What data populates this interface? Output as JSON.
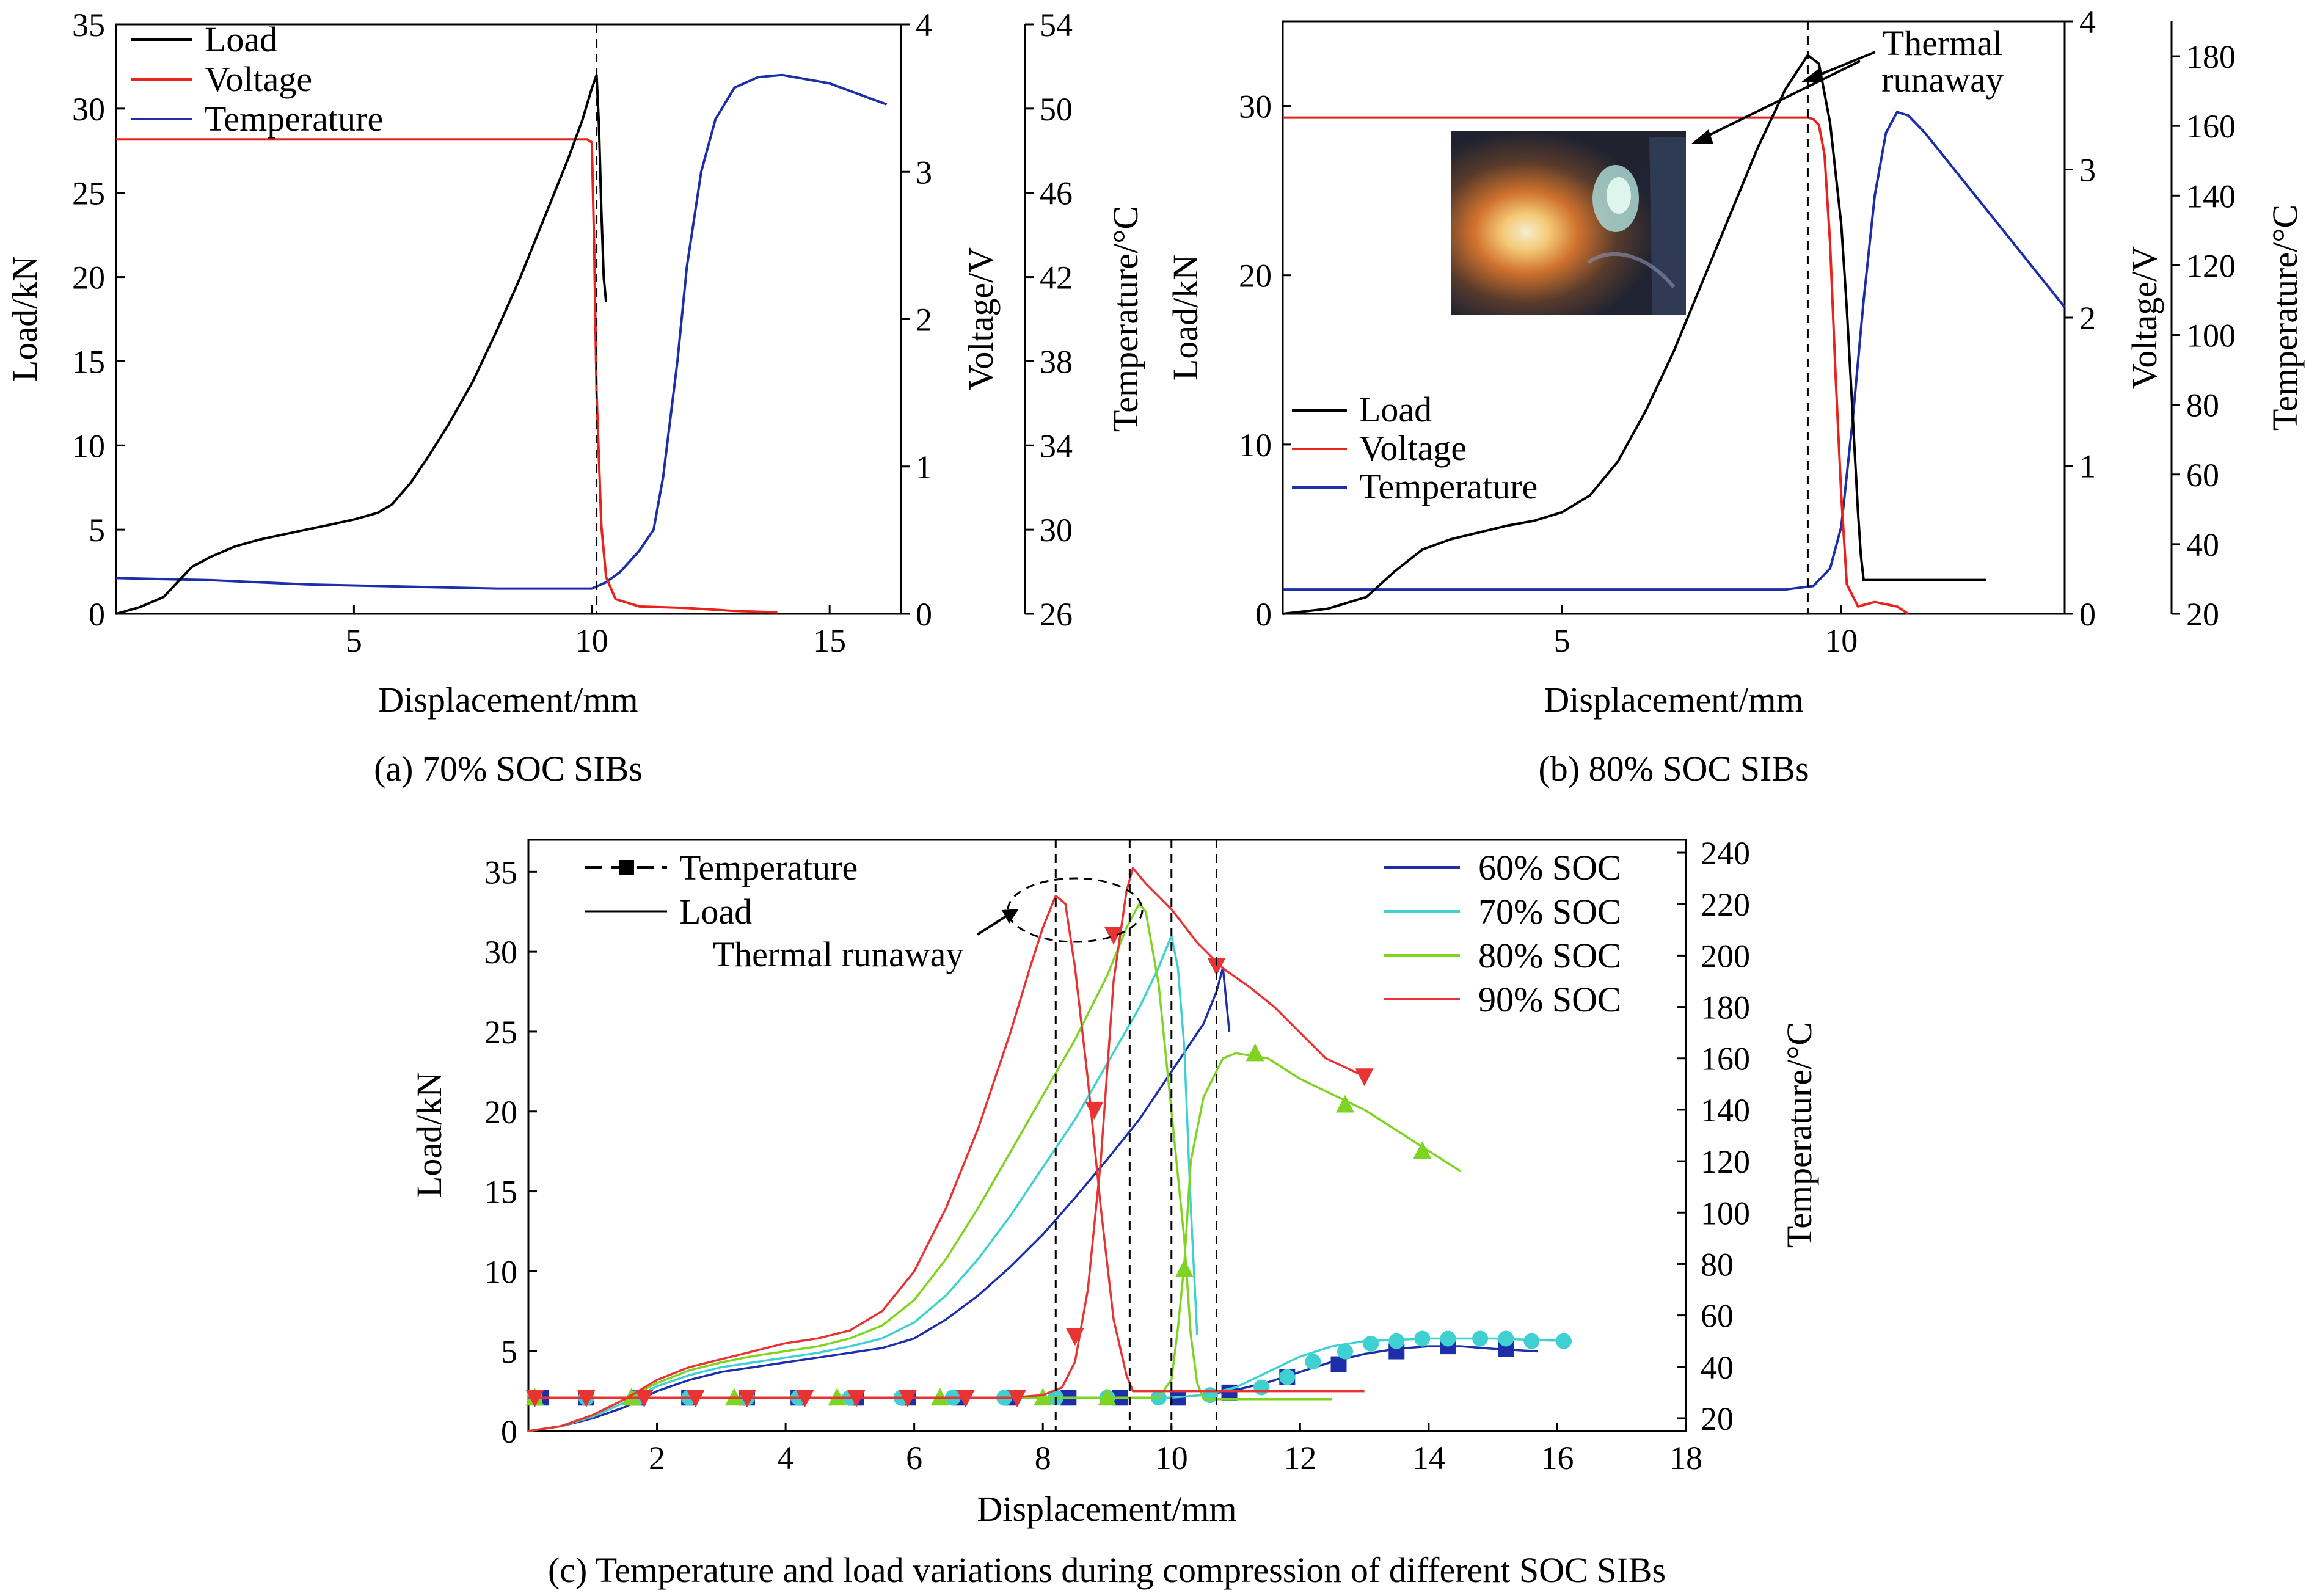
{
  "chart_data": [
    {
      "type": "line",
      "caption": "(a) 70% SOC SIBs",
      "xlabel": "Displacement/mm",
      "ylabel": "Load/kN",
      "y2label": "Voltage/V",
      "y3label": "Temperature/°C",
      "xlim": [
        0,
        16.5
      ],
      "ylim": [
        0,
        35
      ],
      "y2lim": [
        0,
        4
      ],
      "y3lim": [
        26,
        54
      ],
      "xticks": [
        "5",
        "10",
        "15"
      ],
      "yticks": [
        "0",
        "5",
        "10",
        "15",
        "20",
        "25",
        "30",
        "35"
      ],
      "y2ticks": [
        "0",
        "1",
        "2",
        "3",
        "4"
      ],
      "y3ticks": [
        "26",
        "30",
        "34",
        "38",
        "42",
        "46",
        "50",
        "54"
      ],
      "legend": [
        "Load",
        "Voltage",
        "Temperature"
      ],
      "legend_position": "top-left",
      "marker_line_x": 10.1,
      "series": [
        {
          "name": "Load",
          "axis": "load",
          "color": "#000000",
          "x": [
            0,
            0.5,
            1.0,
            1.4,
            1.6,
            2.0,
            2.5,
            3.0,
            3.5,
            4.0,
            4.5,
            5.0,
            5.5,
            5.8,
            6.2,
            6.6,
            7.0,
            7.5,
            8.0,
            8.5,
            9.0,
            9.5,
            9.8,
            10.0,
            10.1,
            10.15,
            10.2,
            10.25,
            10.3
          ],
          "y": [
            0,
            0.4,
            1.0,
            2.2,
            2.8,
            3.4,
            4.0,
            4.4,
            4.7,
            5.0,
            5.3,
            5.6,
            6.0,
            6.5,
            7.8,
            9.5,
            11.3,
            13.8,
            16.8,
            20.0,
            23.5,
            27.0,
            29.3,
            31.2,
            32.0,
            29.0,
            24.0,
            20.0,
            18.5
          ]
        },
        {
          "name": "Voltage",
          "axis": "voltage",
          "color": "#e8231b",
          "x": [
            0,
            9.9,
            10.0,
            10.05,
            10.1,
            10.2,
            10.3,
            10.5,
            11.0,
            12.0,
            13.0,
            13.9
          ],
          "y": [
            3.22,
            3.22,
            3.2,
            2.5,
            1.5,
            0.6,
            0.25,
            0.1,
            0.05,
            0.04,
            0.02,
            0.01
          ]
        },
        {
          "name": "Temperature",
          "axis": "temperature",
          "color": "#1c2fa8",
          "x": [
            0,
            2,
            4,
            6,
            8,
            10,
            10.3,
            10.6,
            11.0,
            11.3,
            11.5,
            11.8,
            12.0,
            12.3,
            12.6,
            13.0,
            13.5,
            14.0,
            15.0,
            16.2
          ],
          "y": [
            27.7,
            27.6,
            27.4,
            27.3,
            27.2,
            27.2,
            27.5,
            28.0,
            29.0,
            30.0,
            32.5,
            38.0,
            42.5,
            47.0,
            49.5,
            51.0,
            51.5,
            51.6,
            51.2,
            50.2
          ]
        }
      ]
    },
    {
      "type": "line",
      "caption": "(b) 80% SOC SIBs",
      "xlabel": "Displacement/mm",
      "ylabel": "Load/kN",
      "y2label": "Voltage/V",
      "y3label": "Temperature/°C",
      "xlim": [
        0,
        14
      ],
      "ylim": [
        0,
        35
      ],
      "y2lim": [
        0,
        4
      ],
      "y3lim": [
        20,
        190
      ],
      "xticks": [
        "5",
        "10"
      ],
      "yticks": [
        "0",
        "10",
        "20",
        "30"
      ],
      "y2ticks": [
        "0",
        "1",
        "2",
        "3",
        "4"
      ],
      "y3ticks": [
        "20",
        "40",
        "60",
        "80",
        "100",
        "120",
        "140",
        "160",
        "180"
      ],
      "legend": [
        "Load",
        "Voltage",
        "Temperature"
      ],
      "legend_position": "middle-left",
      "annotation": "Thermal runaway",
      "marker_line_x": 9.4,
      "series": [
        {
          "name": "Load",
          "axis": "load",
          "color": "#000000",
          "x": [
            0,
            0.8,
            1.5,
            2.0,
            2.5,
            3.0,
            3.5,
            4.0,
            4.5,
            5.0,
            5.5,
            6.0,
            6.5,
            7.0,
            7.5,
            8.0,
            8.5,
            9.0,
            9.4,
            9.6,
            9.8,
            10.0,
            10.1,
            10.2,
            10.3,
            10.35,
            10.4,
            11.0,
            12.0,
            12.6
          ],
          "y": [
            0,
            0.3,
            1.0,
            2.5,
            3.8,
            4.4,
            4.8,
            5.2,
            5.5,
            6.0,
            7.0,
            9.0,
            12.0,
            15.5,
            19.5,
            23.5,
            27.5,
            31.0,
            33.0,
            32.5,
            29.0,
            23.0,
            18.0,
            12.0,
            6.0,
            3.5,
            2.0,
            2.0,
            2.0,
            2.0
          ]
        },
        {
          "name": "Voltage",
          "axis": "voltage",
          "color": "#e8231b",
          "x": [
            0,
            9.4,
            9.5,
            9.6,
            9.7,
            9.8,
            9.9,
            10.0,
            10.1,
            10.3,
            10.6,
            11.0,
            11.2
          ],
          "y": [
            3.35,
            3.35,
            3.34,
            3.3,
            3.1,
            2.5,
            1.6,
            0.8,
            0.2,
            0.05,
            0.08,
            0.05,
            0.0
          ]
        },
        {
          "name": "Temperature",
          "axis": "temperature",
          "color": "#1c2fa8",
          "x": [
            0,
            3,
            6,
            9.0,
            9.5,
            9.8,
            10.0,
            10.2,
            10.4,
            10.6,
            10.8,
            11.0,
            11.2,
            11.5,
            12.0,
            12.5,
            13.0,
            14.0
          ],
          "y": [
            27,
            27,
            27,
            27,
            28,
            33,
            45,
            75,
            110,
            140,
            158,
            164,
            163,
            158,
            148,
            138,
            128,
            108
          ]
        }
      ]
    },
    {
      "type": "line",
      "caption": "(c) Temperature and load variations during compression of different SOC SIBs",
      "xlabel": "Displacement/mm",
      "ylabel": "Load/kN",
      "y2label": "Temperature/°C",
      "xlim": [
        0,
        18
      ],
      "ylim": [
        0,
        37
      ],
      "y2lim": [
        15,
        245
      ],
      "xticks": [
        "2",
        "4",
        "6",
        "8",
        "10",
        "12",
        "14",
        "16",
        "18"
      ],
      "yticks": [
        "0",
        "5",
        "10",
        "15",
        "20",
        "25",
        "30",
        "35"
      ],
      "y2ticks": [
        "20",
        "40",
        "60",
        "80",
        "100",
        "120",
        "140",
        "160",
        "180",
        "200",
        "220",
        "240"
      ],
      "legend_styles": [
        "Temperature",
        "Load"
      ],
      "legend_series": [
        "60% SOC",
        "70% SOC",
        "80% SOC",
        "90% SOC"
      ],
      "annotation": "Thermal runaway",
      "marker_lines_x": [
        8.2,
        9.35,
        10.0,
        10.7
      ],
      "series": [
        {
          "name": "60% SOC",
          "color": "#1c2fa8",
          "marker": "square",
          "load_x": [
            0,
            0.5,
            1.0,
            1.5,
            2.0,
            2.5,
            3.0,
            3.5,
            4.0,
            4.5,
            5.0,
            5.5,
            6.0,
            6.5,
            7.0,
            7.5,
            8.0,
            8.5,
            9.0,
            9.5,
            10.0,
            10.5,
            10.7,
            10.8,
            10.9
          ],
          "load_y": [
            0,
            0.3,
            0.8,
            1.5,
            2.5,
            3.2,
            3.7,
            4.0,
            4.3,
            4.6,
            4.9,
            5.2,
            5.8,
            7.0,
            8.5,
            10.3,
            12.3,
            14.6,
            17.0,
            19.5,
            22.5,
            25.5,
            27.5,
            29.0,
            25.0
          ],
          "temp_x": [
            0,
            2,
            4,
            6,
            8,
            9,
            10,
            10.5,
            11.0,
            11.5,
            12.0,
            12.5,
            13.0,
            13.5,
            14.0,
            14.5,
            15.0,
            15.7
          ],
          "temp_y": [
            28,
            28,
            28,
            28,
            28,
            28,
            28,
            29,
            31,
            34,
            38,
            42,
            45,
            47,
            48,
            48,
            47,
            46
          ],
          "temp_marker_x": [
            0.2,
            0.9,
            1.7,
            2.5,
            3.4,
            4.2,
            5.1,
            5.9,
            6.7,
            7.5,
            8.4,
            9.2,
            10.1,
            10.9,
            11.8,
            12.6,
            13.5,
            14.3,
            15.2
          ],
          "temp_marker_y": [
            28,
            28,
            28,
            28,
            28,
            28,
            28,
            28,
            28,
            28,
            28,
            28,
            28,
            30,
            36,
            41,
            46,
            48,
            47
          ]
        },
        {
          "name": "70% SOC",
          "color": "#3fd1d1",
          "marker": "circle",
          "load_x": [
            0,
            0.5,
            1.0,
            1.5,
            2.0,
            2.5,
            3.0,
            3.5,
            4.0,
            4.5,
            5.0,
            5.5,
            6.0,
            6.5,
            7.0,
            7.5,
            8.0,
            8.5,
            9.0,
            9.5,
            9.8,
            10.0,
            10.1,
            10.2,
            10.3,
            10.4
          ],
          "load_y": [
            0,
            0.3,
            0.9,
            1.8,
            2.8,
            3.5,
            4.0,
            4.3,
            4.6,
            4.9,
            5.3,
            5.8,
            6.8,
            8.5,
            10.8,
            13.5,
            16.5,
            19.5,
            23.0,
            26.5,
            29.0,
            31.0,
            29.0,
            24.0,
            14.0,
            6.0
          ],
          "temp_x": [
            0,
            2,
            4,
            6,
            8,
            9,
            10,
            10.5,
            11.0,
            11.5,
            12.0,
            12.5,
            13.0,
            14.0,
            15.0,
            16.2
          ],
          "temp_y": [
            28,
            28,
            28,
            28,
            28,
            28,
            28,
            29,
            32,
            38,
            44,
            48,
            50,
            51,
            51,
            50
          ],
          "temp_marker_x": [
            0.1,
            0.9,
            1.7,
            2.5,
            3.4,
            4.2,
            5.0,
            5.8,
            6.6,
            7.4,
            8.2,
            9.0,
            9.8,
            10.6,
            11.4,
            11.8,
            12.2,
            12.7,
            13.1,
            13.5,
            13.9,
            14.3,
            14.8,
            15.2,
            15.6,
            16.1
          ],
          "temp_marker_y": [
            28,
            28,
            28,
            28,
            28,
            28,
            28,
            28,
            28,
            28,
            28,
            28,
            28,
            29,
            32,
            36,
            42,
            46,
            49,
            50,
            51,
            51,
            51,
            51,
            50,
            50
          ]
        },
        {
          "name": "80% SOC",
          "color": "#7fd321",
          "marker": "triangle-up",
          "load_x": [
            0,
            0.5,
            1.0,
            1.5,
            2.0,
            2.5,
            3.0,
            3.5,
            4.0,
            4.5,
            5.0,
            5.5,
            6.0,
            6.5,
            7.0,
            7.5,
            8.0,
            8.5,
            9.0,
            9.3,
            9.5,
            9.6,
            9.8,
            10.0,
            10.2,
            10.3,
            10.4,
            10.5,
            11.0,
            12.0,
            12.5
          ],
          "load_y": [
            0,
            0.3,
            1.0,
            2.0,
            3.0,
            3.8,
            4.3,
            4.7,
            5.0,
            5.3,
            5.8,
            6.6,
            8.2,
            10.8,
            14.0,
            17.5,
            21.0,
            24.5,
            28.5,
            31.5,
            33.0,
            32.5,
            28.0,
            20.0,
            12.0,
            6.0,
            3.0,
            2.0,
            2.0,
            2.0,
            2.0
          ],
          "temp_x": [
            0,
            2,
            4,
            6,
            8,
            9,
            9.5,
            9.8,
            10.0,
            10.1,
            10.2,
            10.3,
            10.5,
            10.8,
            11.0,
            11.5,
            12.0,
            12.5,
            13.0,
            13.5,
            14.0,
            14.5
          ],
          "temp_y": [
            28,
            28,
            28,
            28,
            28,
            28,
            28,
            28,
            35,
            55,
            80,
            120,
            145,
            160,
            162,
            160,
            152,
            146,
            140,
            132,
            124,
            116
          ],
          "temp_marker_x": [
            0.1,
            1.6,
            3.2,
            4.8,
            6.4,
            8.0,
            9.0,
            10.2,
            11.3,
            12.7,
            13.9
          ],
          "temp_marker_y": [
            28,
            28,
            28,
            28,
            28,
            28,
            28,
            78,
            162,
            142,
            124
          ]
        },
        {
          "name": "90% SOC",
          "color": "#e83333",
          "marker": "triangle-down",
          "load_x": [
            0,
            0.5,
            1.0,
            1.5,
            2.0,
            2.5,
            3.0,
            3.5,
            4.0,
            4.5,
            5.0,
            5.5,
            6.0,
            6.5,
            7.0,
            7.5,
            7.8,
            8.0,
            8.2,
            8.35,
            8.5,
            8.7,
            8.9,
            9.1,
            9.3,
            9.4,
            9.5,
            9.7,
            10.0,
            10.5,
            11.0,
            11.5,
            12.0,
            12.5,
            13.0
          ],
          "load_y": [
            0,
            0.3,
            1.0,
            2.0,
            3.2,
            4.0,
            4.5,
            5.0,
            5.5,
            5.8,
            6.3,
            7.5,
            10.0,
            14.0,
            19.0,
            25.0,
            29.0,
            31.5,
            33.5,
            33.0,
            29.0,
            22.0,
            14.0,
            7.0,
            3.5,
            2.5,
            2.5,
            2.5,
            2.5,
            2.5,
            2.5,
            2.5,
            2.5,
            2.5,
            2.5
          ],
          "temp_x": [
            0,
            2,
            4,
            6,
            7.5,
            8.0,
            8.3,
            8.5,
            8.7,
            8.9,
            9.1,
            9.3,
            9.4,
            9.6,
            10.0,
            10.4,
            10.8,
            11.2,
            11.6,
            12.0,
            12.4,
            13.0
          ],
          "temp_y": [
            28,
            28,
            28,
            28,
            28,
            29,
            32,
            42,
            70,
            120,
            190,
            225,
            234,
            228,
            218,
            205,
            195,
            188,
            180,
            170,
            160,
            153
          ],
          "temp_marker_x": [
            0.1,
            0.9,
            1.8,
            2.6,
            3.4,
            4.3,
            5.1,
            5.9,
            6.8,
            7.6,
            8.5,
            8.8,
            9.1,
            10.7,
            13.0
          ],
          "temp_marker_y": [
            28,
            28,
            28,
            28,
            28,
            28,
            28,
            28,
            28,
            28,
            52,
            140,
            208,
            196,
            153
          ]
        }
      ]
    }
  ]
}
